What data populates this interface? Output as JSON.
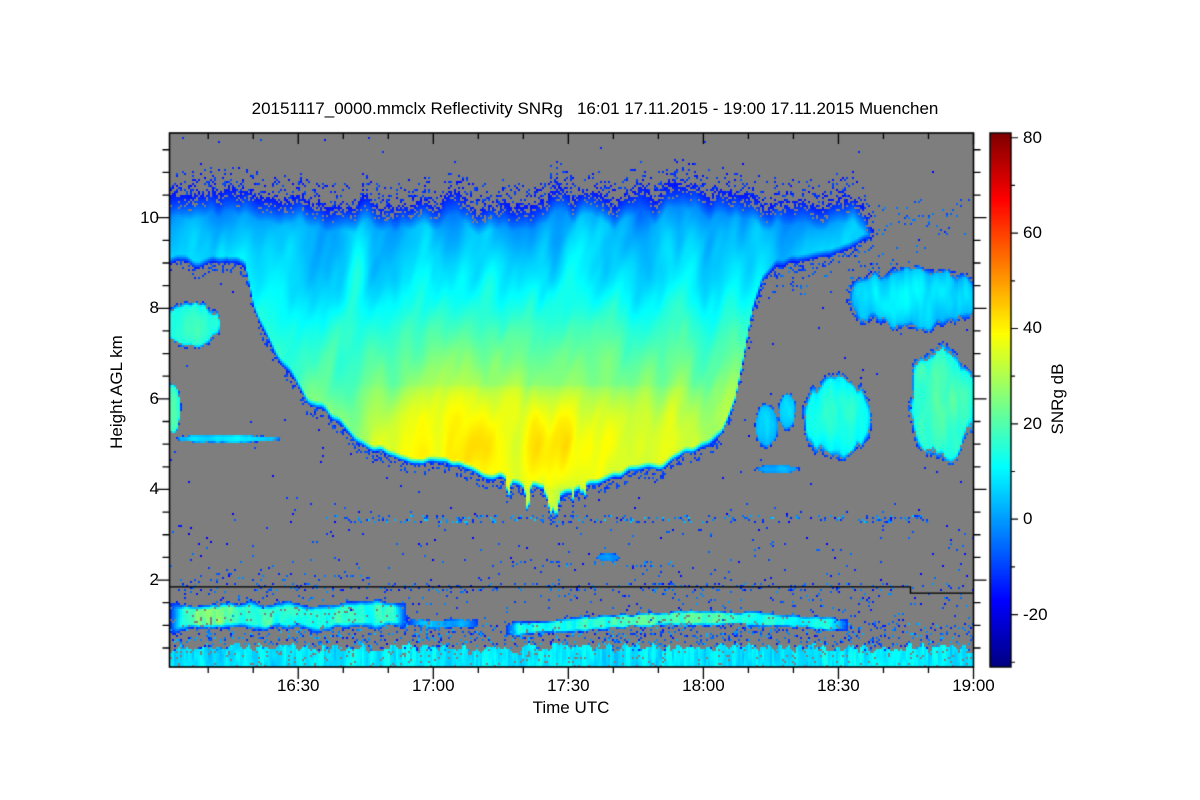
{
  "chart_data": {
    "type": "heatmap",
    "title": "20151117_0000.mmclx Reflectivity SNRg   16:01 17.11.2015 - 19:00 17.11.2015 Muenchen",
    "x_label": "Time UTC",
    "y_label": "Height AGL km",
    "colorbar_label": "SNRg dB",
    "x_axis": {
      "start": "16:01",
      "end": "19:00",
      "start_min": 1.4,
      "end_min": 180,
      "major_ticks": [
        {
          "min": 30,
          "label": "16:30"
        },
        {
          "min": 60,
          "label": "17:00"
        },
        {
          "min": 90,
          "label": "17:30"
        },
        {
          "min": 120,
          "label": "18:00"
        },
        {
          "min": 150,
          "label": "18:30"
        },
        {
          "min": 180,
          "label": "19:00"
        }
      ],
      "minor_step_min": 10
    },
    "y_axis": {
      "min_km": 0.08,
      "max_km": 11.87,
      "major_ticks": [
        {
          "v": 2,
          "label": "2"
        },
        {
          "v": 4,
          "label": "4"
        },
        {
          "v": 6,
          "label": "6"
        },
        {
          "v": 8,
          "label": "8"
        },
        {
          "v": 10,
          "label": "10"
        }
      ],
      "minor_step_km": 0.5
    },
    "colorbar": {
      "min_db": -31,
      "max_db": 81,
      "ticks": [
        {
          "v": 80,
          "label": "80"
        },
        {
          "v": 60,
          "label": "60"
        },
        {
          "v": 40,
          "label": "40"
        },
        {
          "v": 20,
          "label": "20"
        },
        {
          "v": 0,
          "label": "0"
        },
        {
          "v": -20,
          "label": "-20"
        }
      ],
      "minor_step_db": 10,
      "colormap": "jet"
    },
    "no_signal_color": "#7e7e7e",
    "frame_color": "#000000",
    "instrument_range_line": {
      "h_km_before": 1.85,
      "h_km_after": 1.71,
      "step_at_min": 166
    },
    "features": {
      "upper_cloud": {
        "t_span": [
          1.4,
          158
        ],
        "top_pts": [
          [
            1.4,
            10.6
          ],
          [
            10,
            10.75
          ],
          [
            25,
            10.45
          ],
          [
            35,
            10.3
          ],
          [
            45,
            10.35
          ],
          [
            55,
            10.25
          ],
          [
            62,
            10.5
          ],
          [
            70,
            10.25
          ],
          [
            80,
            10.3
          ],
          [
            90,
            10.6
          ],
          [
            100,
            10.45
          ],
          [
            110,
            10.55
          ],
          [
            118,
            10.7
          ],
          [
            125,
            10.55
          ],
          [
            132,
            10.45
          ],
          [
            140,
            10.4
          ],
          [
            148,
            10.3
          ],
          [
            152,
            10.35
          ],
          [
            156,
            10.1
          ],
          [
            158,
            9.9
          ]
        ],
        "base_pts": [
          [
            1.4,
            9.0
          ],
          [
            8,
            8.9
          ],
          [
            14,
            9.05
          ],
          [
            18,
            8.9
          ],
          [
            20,
            8.0
          ],
          [
            25,
            7.0
          ],
          [
            30,
            6.15
          ],
          [
            35,
            5.75
          ],
          [
            40,
            5.25
          ],
          [
            45,
            4.95
          ],
          [
            50,
            4.75
          ],
          [
            55,
            4.6
          ],
          [
            60,
            4.5
          ],
          [
            65,
            4.45
          ],
          [
            70,
            4.3
          ],
          [
            75,
            4.15
          ],
          [
            80,
            3.95
          ],
          [
            85,
            4.0
          ],
          [
            88,
            3.9
          ],
          [
            92,
            4.05
          ],
          [
            96,
            4.15
          ],
          [
            100,
            4.25
          ],
          [
            105,
            4.3
          ],
          [
            110,
            4.45
          ],
          [
            115,
            4.7
          ],
          [
            120,
            4.95
          ],
          [
            124,
            5.3
          ],
          [
            127,
            6.0
          ],
          [
            129,
            7.0
          ],
          [
            131,
            7.9
          ],
          [
            133,
            8.5
          ],
          [
            136,
            8.9
          ],
          [
            140,
            9.05
          ],
          [
            145,
            9.1
          ],
          [
            150,
            9.2
          ],
          [
            154,
            9.4
          ],
          [
            158,
            9.7
          ]
        ],
        "v_by_h": [
          [
            3.5,
            33
          ],
          [
            4.2,
            33
          ],
          [
            5.0,
            31
          ],
          [
            5.6,
            29
          ],
          [
            6.3,
            25
          ],
          [
            7.0,
            20
          ],
          [
            7.8,
            14
          ],
          [
            8.6,
            9
          ],
          [
            9.2,
            6
          ],
          [
            9.7,
            3
          ],
          [
            10.1,
            -1
          ],
          [
            10.7,
            -8
          ],
          [
            11.3,
            -12
          ]
        ],
        "core_boost": {
          "t": [
            42,
            122
          ],
          "h": [
            4.0,
            6.3
          ],
          "amount": 8
        },
        "virga": {
          "t": [
            76,
            94
          ],
          "max_depth": 0.75
        }
      },
      "blobs": [
        {
          "name": "left-patch-7.7km",
          "c": [
            6,
            7.65
          ],
          "rt": 6.5,
          "rh": 0.52,
          "v": 12,
          "core": 6
        },
        {
          "name": "left-edge-sliver-5.8km",
          "c": [
            2,
            5.8
          ],
          "rt": 2.0,
          "rh": 0.6,
          "v": 15,
          "core": 5
        },
        {
          "name": "left-dash-5.1km",
          "c": [
            14,
            5.12
          ],
          "rt": 12,
          "rh": 0.09,
          "v": 3,
          "core": 6
        },
        {
          "name": "blob-2.5km-1738",
          "c": [
            98.7,
            2.5
          ],
          "rt": 2.6,
          "rh": 0.1,
          "v": -4,
          "core": 4
        },
        {
          "name": "right-blobs-a",
          "c": [
            134,
            5.4
          ],
          "rt": 2.6,
          "rh": 0.5,
          "v": 2,
          "core": 6
        },
        {
          "name": "right-blobs-b",
          "c": [
            138.5,
            5.7
          ],
          "rt": 2.2,
          "rh": 0.45,
          "v": 2,
          "core": 6
        },
        {
          "name": "right-dash-4.45km",
          "c": [
            136.5,
            4.45
          ],
          "rt": 5.5,
          "rh": 0.1,
          "v": -2,
          "core": 4
        },
        {
          "name": "right-cluster-1822",
          "c": [
            149.5,
            5.6
          ],
          "rt": 7.5,
          "rh": 0.95,
          "v": 8,
          "core": 8
        },
        {
          "name": "right-patch-1853",
          "c": [
            173,
            5.9
          ],
          "rt": 8.0,
          "rh": 1.25,
          "v": 13,
          "core": 7
        },
        {
          "name": "right-upper-patch",
          "c": [
            167,
            8.2
          ],
          "rt": 15,
          "rh": 0.72,
          "v": 2,
          "core": 8
        }
      ],
      "layers": [
        {
          "name": "bl-streak-1601-1654",
          "t": [
            1.4,
            54
          ],
          "center_km": 1.22,
          "wave_amp": 0.15,
          "thick": 0.27,
          "thick_var": 0.16,
          "v_db": 15,
          "v_var": 8,
          "boost": {
            "t": [
              4,
              18
            ],
            "add": 11
          }
        },
        {
          "name": "bl-weak-1654-1708",
          "t": [
            54,
            70
          ],
          "center_km": 1.05,
          "wave_amp": 0.06,
          "thick": 0.1,
          "thick_var": 0.06,
          "v_db": 2,
          "v_var": 6
        },
        {
          "name": "bl-streak-1716-1832",
          "t": [
            76,
            152
          ],
          "center_pts": [
            [
              76,
              0.9
            ],
            [
              90,
              1.0
            ],
            [
              100,
              1.08
            ],
            [
              115,
              1.16
            ],
            [
              130,
              1.15
            ],
            [
              145,
              1.05
            ],
            [
              152,
              1.0
            ]
          ],
          "thick": 0.13,
          "thick_var": 0.1,
          "v_db": 13,
          "v_var": 7,
          "boost": {
            "t": [
              95,
              133
            ],
            "add": 7
          }
        }
      ],
      "surface": {
        "name": "surface-echo-layer",
        "h_top_km": 0.45,
        "v_db": 7,
        "v_var": 10
      },
      "speckles": [
        {
          "name": "speckle-row-3.4km",
          "t": [
            35,
            170
          ],
          "h": [
            3.27,
            3.45
          ],
          "density": 0.17,
          "v_db": [
            -14,
            6
          ]
        },
        {
          "name": "speckle-row-2.35km",
          "t": [
            72,
            118
          ],
          "h": [
            2.28,
            2.44
          ],
          "density": 0.12,
          "v_db": [
            -12,
            2
          ]
        },
        {
          "name": "speckle-row-above-line",
          "t": [
            1.4,
            180
          ],
          "h": [
            1.76,
            1.92
          ],
          "density": 0.1,
          "v_db": [
            -16,
            0
          ]
        },
        {
          "name": "speckle-row-2.1km",
          "t": [
            1.4,
            45
          ],
          "h": [
            2.0,
            2.16
          ],
          "density": 0.08,
          "v_db": [
            -14,
            0
          ]
        },
        {
          "name": "speckle-subcloud-low",
          "t": [
            1.4,
            180
          ],
          "h": [
            0.45,
            1.05
          ],
          "density": 0.17,
          "v_db": [
            -16,
            4
          ]
        },
        {
          "name": "speckle-mid-low",
          "t": [
            1.4,
            180
          ],
          "h": [
            1.05,
            1.9
          ],
          "density": 0.05,
          "v_db": [
            -16,
            0
          ]
        },
        {
          "name": "speckle-2-3.6km",
          "t": [
            1.4,
            180
          ],
          "h": [
            1.9,
            3.6
          ],
          "density": 0.013,
          "v_db": [
            -18,
            -4
          ]
        },
        {
          "name": "speckle-upper",
          "t": [
            1.4,
            180
          ],
          "h": [
            3.6,
            11.8
          ],
          "density": 0.0028,
          "v_db": [
            -18,
            -8
          ]
        },
        {
          "name": "speckle-right-9km",
          "t": [
            135,
            170
          ],
          "h": [
            8.3,
            9.4
          ],
          "density": 0.05,
          "v_db": [
            -12,
            -2
          ]
        },
        {
          "name": "speckle-right-band-tail",
          "t": [
            158,
            180
          ],
          "h": [
            9.6,
            10.4
          ],
          "density": 0.05,
          "v_db": [
            -10,
            -2
          ]
        }
      ]
    }
  }
}
